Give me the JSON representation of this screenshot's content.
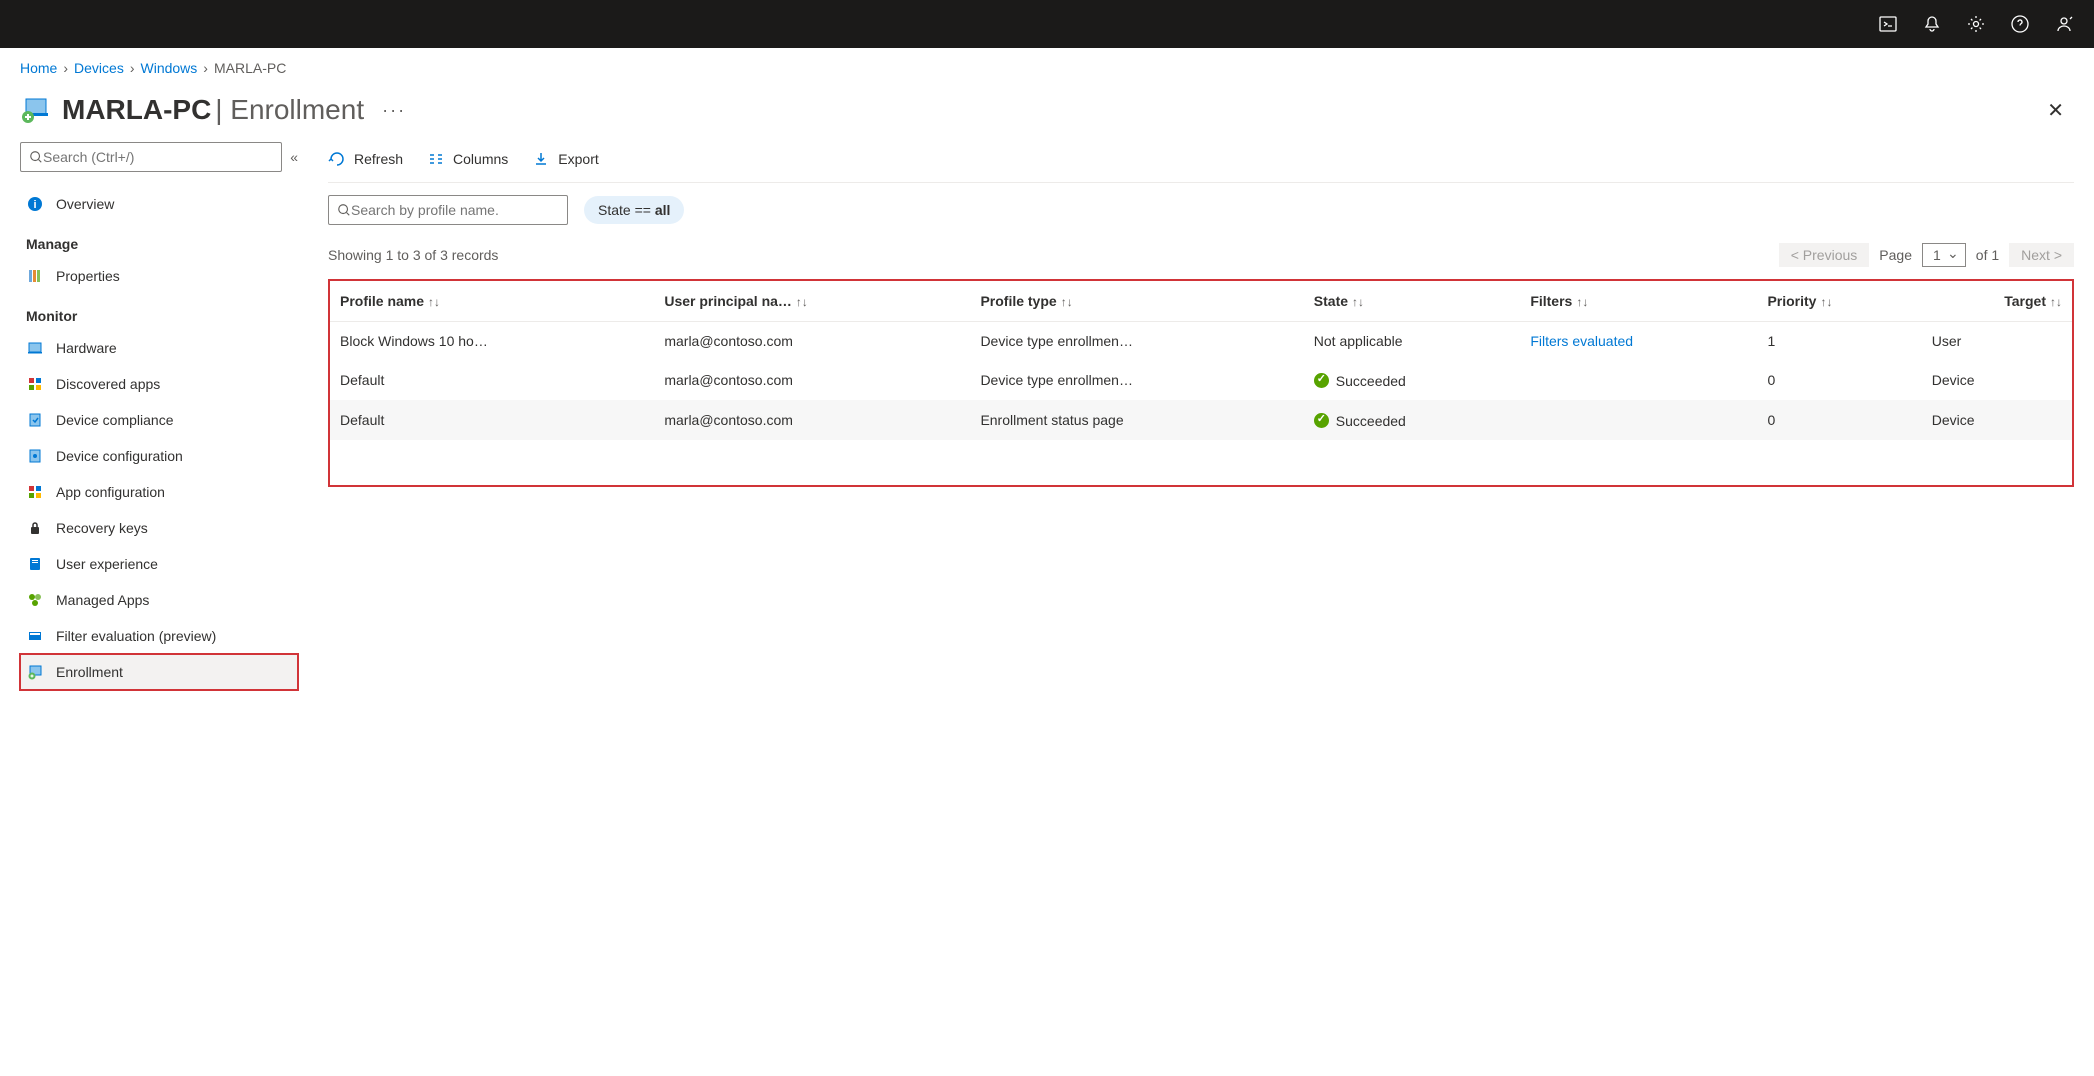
{
  "breadcrumbs": {
    "home": "Home",
    "devices": "Devices",
    "windows": "Windows",
    "current": "MARLA-PC"
  },
  "page": {
    "title_main": "MARLA-PC",
    "title_sub": "Enrollment"
  },
  "sidebar": {
    "search_placeholder": "Search (Ctrl+/)",
    "items": {
      "overview": "Overview",
      "manage_head": "Manage",
      "properties": "Properties",
      "monitor_head": "Monitor",
      "hardware": "Hardware",
      "discovered_apps": "Discovered apps",
      "device_compliance": "Device compliance",
      "device_configuration": "Device configuration",
      "app_configuration": "App configuration",
      "recovery_keys": "Recovery keys",
      "user_experience": "User experience",
      "managed_apps": "Managed Apps",
      "filter_evaluation": "Filter evaluation (preview)",
      "enrollment": "Enrollment"
    }
  },
  "toolbar": {
    "refresh": "Refresh",
    "columns": "Columns",
    "export": "Export"
  },
  "filters": {
    "profile_search_placeholder": "Search by profile name.",
    "state_label": "State == ",
    "state_value": "all"
  },
  "records_text": "Showing 1 to 3 of 3 records",
  "pager": {
    "prev": "<  Previous",
    "page_label": "Page",
    "page_value": "1",
    "of_label": "of 1",
    "next": "Next  >"
  },
  "table": {
    "headers": {
      "profile_name": "Profile name",
      "upn": "User principal na…",
      "profile_type": "Profile type",
      "state": "State",
      "filters": "Filters",
      "priority": "Priority",
      "target": "Target"
    },
    "rows": [
      {
        "profile_name": "Block Windows 10 ho…",
        "upn": "marla@contoso.com",
        "profile_type": "Device type enrollmen…",
        "state": "Not applicable",
        "state_success": false,
        "filters": "Filters evaluated",
        "filters_link": true,
        "priority": "1",
        "target": "User"
      },
      {
        "profile_name": "Default",
        "upn": "marla@contoso.com",
        "profile_type": "Device type enrollmen…",
        "state": "Succeeded",
        "state_success": true,
        "filters": "",
        "filters_link": false,
        "priority": "0",
        "target": "Device"
      },
      {
        "profile_name": "Default",
        "upn": "marla@contoso.com",
        "profile_type": "Enrollment status page",
        "state": "Succeeded",
        "state_success": true,
        "filters": "",
        "filters_link": false,
        "priority": "0",
        "target": "Device"
      }
    ]
  }
}
